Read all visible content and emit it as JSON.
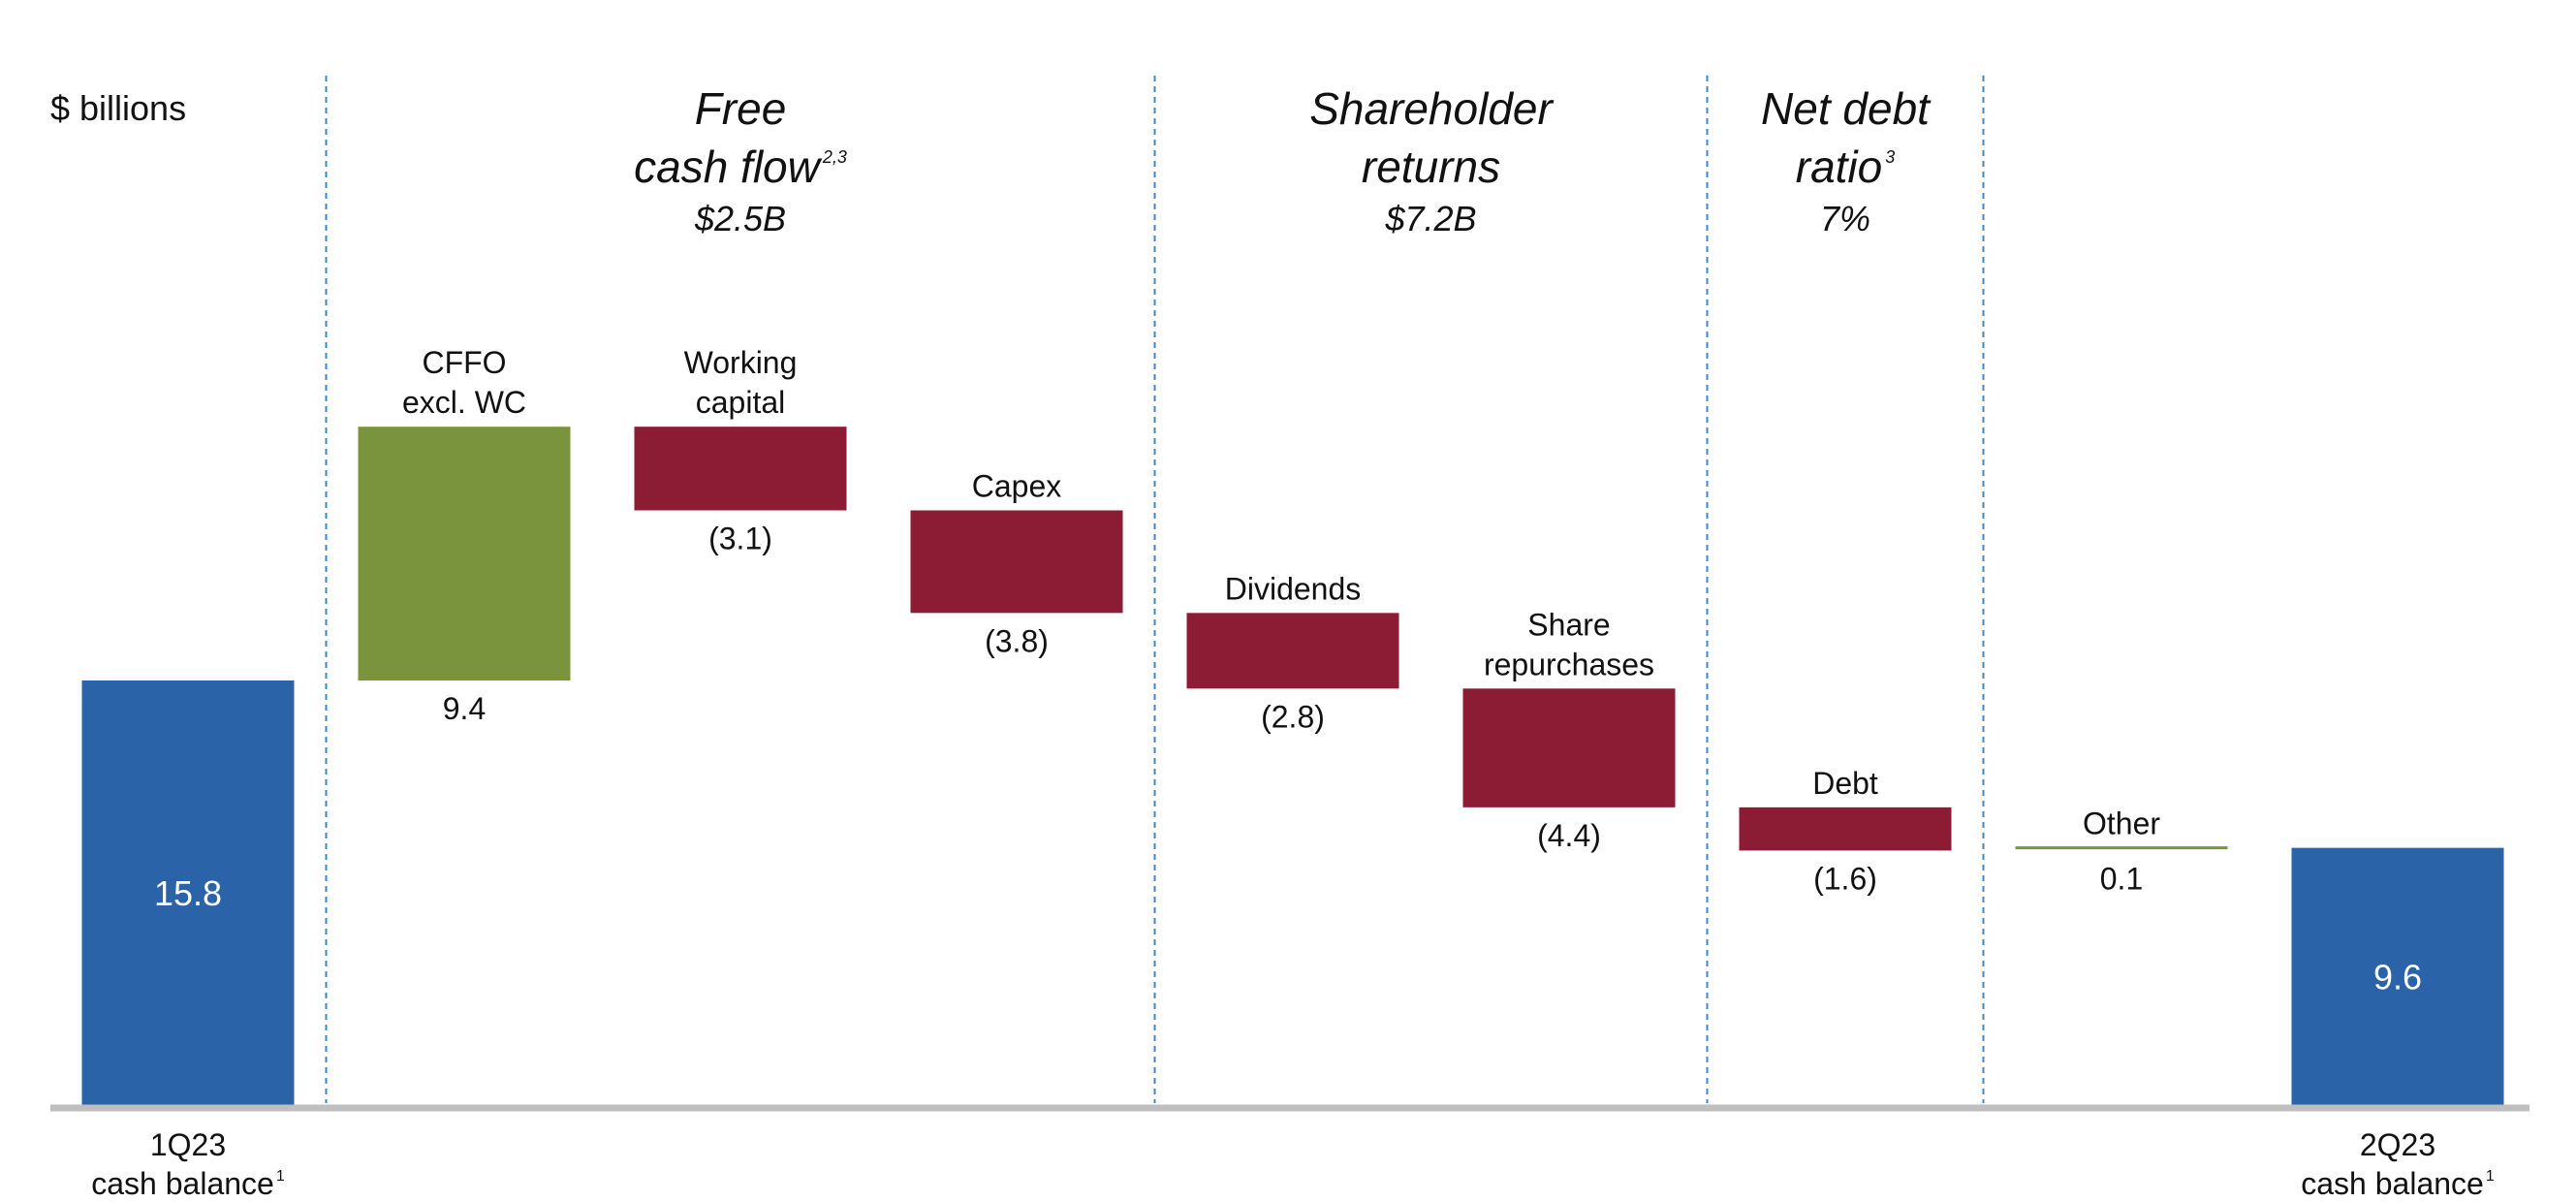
{
  "unit_label": "$ billions",
  "sections": [
    {
      "title_lines": [
        "Free",
        "cash flow"
      ],
      "superscript": "2,3",
      "subtitle": "$2.5B"
    },
    {
      "title_lines": [
        "Shareholder",
        "returns"
      ],
      "superscript": "",
      "subtitle": "$7.2B"
    },
    {
      "title_lines": [
        "Net debt",
        "ratio"
      ],
      "superscript": "3",
      "subtitle": "7%"
    }
  ],
  "colors": {
    "balance": "#2A63A8",
    "positive": "#7A943E",
    "negative": "#8B1C34",
    "axis": "#BFBFBF",
    "divider": "#3F87C7"
  },
  "chart_data": {
    "type": "bar",
    "subtype": "waterfall",
    "ylabel": "$ billions",
    "bars": [
      {
        "id": "start",
        "kind": "total",
        "category_lines": [
          "1Q23",
          "cash balance"
        ],
        "category_superscript": "1",
        "value": 15.8,
        "value_label": "15.8"
      },
      {
        "id": "cffo",
        "kind": "increase",
        "category_lines": [
          "CFFO",
          "excl. WC"
        ],
        "value": 9.4,
        "value_label": "9.4"
      },
      {
        "id": "wc",
        "kind": "decrease",
        "category_lines": [
          "Working",
          "capital"
        ],
        "value": -3.1,
        "value_label": "(3.1)"
      },
      {
        "id": "capex",
        "kind": "decrease",
        "category_lines": [
          "Capex"
        ],
        "value": -3.8,
        "value_label": "(3.8)"
      },
      {
        "id": "dividends",
        "kind": "decrease",
        "category_lines": [
          "Dividends"
        ],
        "value": -2.8,
        "value_label": "(2.8)"
      },
      {
        "id": "repurchases",
        "kind": "decrease",
        "category_lines": [
          "Share",
          "repurchases"
        ],
        "value": -4.4,
        "value_label": "(4.4)"
      },
      {
        "id": "debt",
        "kind": "decrease",
        "category_lines": [
          "Debt"
        ],
        "value": -1.6,
        "value_label": "(1.6)"
      },
      {
        "id": "other",
        "kind": "increase",
        "category_lines": [
          "Other"
        ],
        "value": 0.1,
        "value_label": "0.1"
      },
      {
        "id": "end",
        "kind": "total",
        "category_lines": [
          "2Q23",
          "cash balance"
        ],
        "category_superscript": "1",
        "value": 9.6,
        "value_label": "9.6"
      }
    ],
    "dividers_after_bar_index": [
      0,
      3,
      5,
      6
    ],
    "section_spans": [
      [
        1,
        3
      ],
      [
        4,
        5
      ],
      [
        6,
        6
      ]
    ]
  }
}
